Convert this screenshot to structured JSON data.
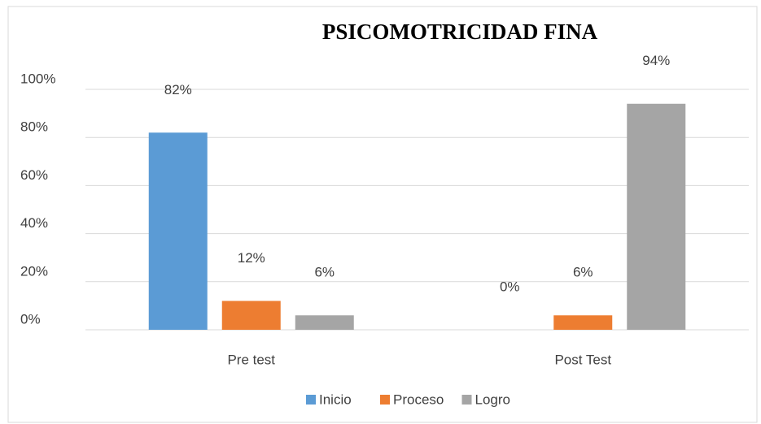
{
  "chart_data": {
    "type": "bar",
    "title": "PSICOMOTRICIDAD FINA",
    "categories": [
      "Pre test",
      "Post Test"
    ],
    "series": [
      {
        "name": "Inicio",
        "color": "#5b9bd5",
        "values": [
          82,
          0
        ],
        "value_labels": [
          "82%",
          "0%"
        ]
      },
      {
        "name": "Proceso",
        "color": "#ed7d31",
        "values": [
          12,
          6
        ],
        "value_labels": [
          "12%",
          "6%"
        ]
      },
      {
        "name": "Logro",
        "color": "#a5a5a5",
        "values": [
          6,
          94
        ],
        "value_labels": [
          "6%",
          "94%"
        ]
      }
    ],
    "ylim": [
      0,
      100
    ],
    "yticks": [
      {
        "value": 0,
        "label": "0%"
      },
      {
        "value": 20,
        "label": "20%"
      },
      {
        "value": 40,
        "label": "40%"
      },
      {
        "value": 60,
        "label": "60%"
      },
      {
        "value": 80,
        "label": "80%"
      },
      {
        "value": 100,
        "label": "100%"
      }
    ],
    "grid": true,
    "legend": "bottom"
  }
}
